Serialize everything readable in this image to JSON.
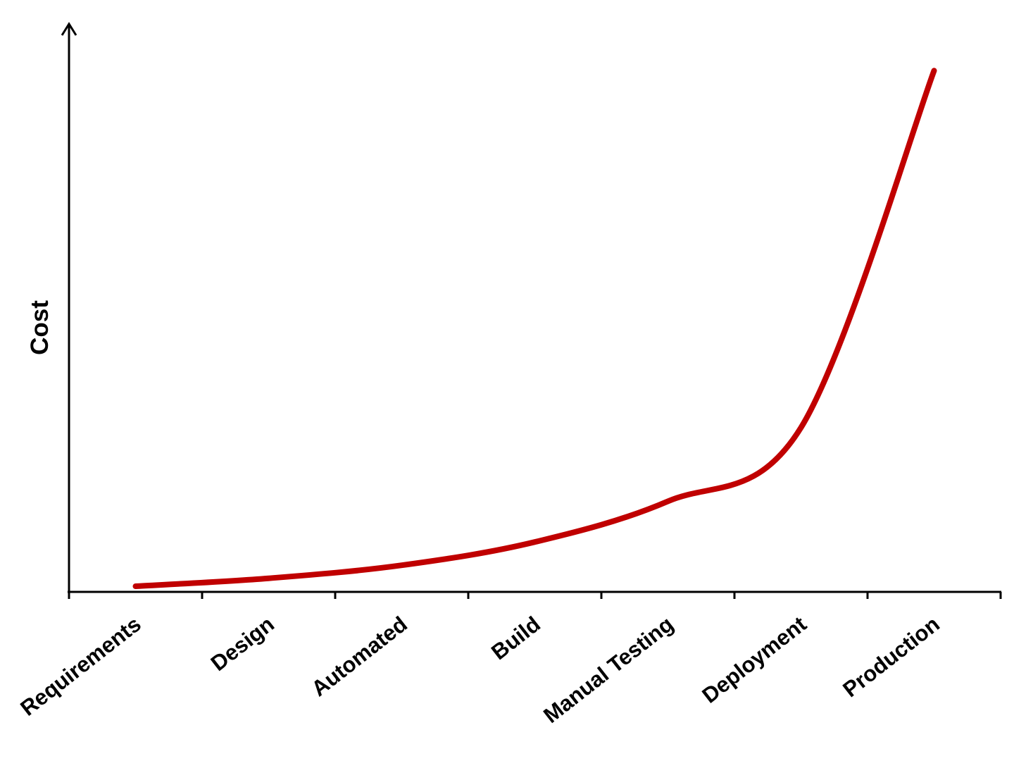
{
  "chart_data": {
    "type": "line",
    "categories": [
      "Requirements",
      "Design",
      "Automated",
      "Build",
      "Manual Testing",
      "Deployment",
      "Production"
    ],
    "series": [
      {
        "values": [
          1,
          2.4,
          4.7,
          8.8,
          16,
          29,
          92
        ],
        "color": "#c00000"
      }
    ],
    "title": "",
    "xlabel": "",
    "ylabel": "Cost",
    "ylim": [
      0,
      100
    ],
    "y_ticks_shown": false,
    "grid": false,
    "legend": "none"
  }
}
